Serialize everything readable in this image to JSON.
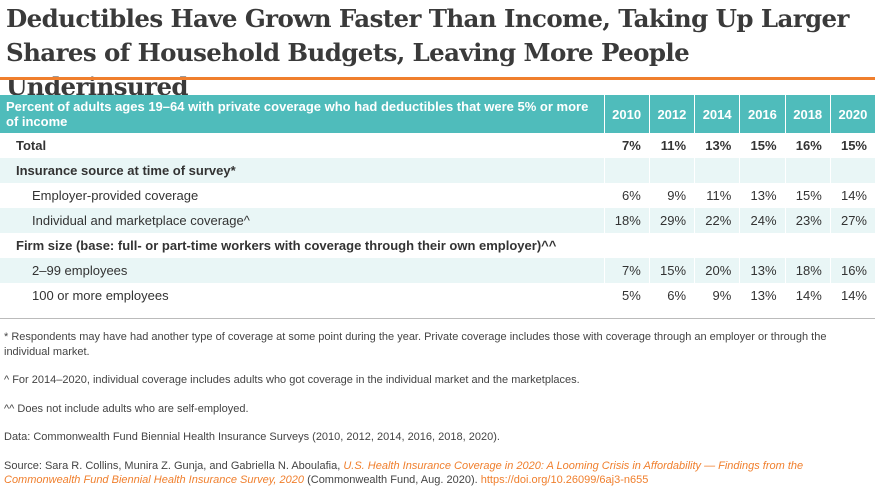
{
  "title_line1": "Deductibles Have Grown Faster Than Income, Taking Up Larger",
  "title_line2": "Shares of Household Budgets, Leaving More People Underinsured",
  "chart_data": {
    "type": "table",
    "header": "Percent of adults ages 19–64 with private coverage who had deductibles that were 5% or more of income",
    "years": [
      "2010",
      "2012",
      "2014",
      "2016",
      "2018",
      "2020"
    ],
    "rows": [
      {
        "label": "Total",
        "values": [
          "7%",
          "11%",
          "13%",
          "15%",
          "16%",
          "15%"
        ],
        "style": "bold",
        "indent": 1
      },
      {
        "label": "Insurance source at time of survey*",
        "values": [
          "",
          "",
          "",
          "",
          "",
          ""
        ],
        "style": "bold alt",
        "indent": 1
      },
      {
        "label": "Employer-provided coverage",
        "values": [
          "6%",
          "9%",
          "11%",
          "13%",
          "15%",
          "14%"
        ],
        "style": "",
        "indent": 2
      },
      {
        "label": "Individual and marketplace coverage^",
        "values": [
          "18%",
          "29%",
          "22%",
          "24%",
          "23%",
          "27%"
        ],
        "style": "alt",
        "indent": 2
      },
      {
        "label": "Firm size (base: full- or part-time workers with coverage through their own employer)^^",
        "values": [
          "",
          "",
          "",
          "",
          "",
          ""
        ],
        "style": "bold",
        "indent": 1
      },
      {
        "label": "2–99 employees",
        "values": [
          "7%",
          "15%",
          "20%",
          "13%",
          "18%",
          "16%"
        ],
        "style": "alt",
        "indent": 2
      },
      {
        "label": "100 or more employees",
        "values": [
          "5%",
          "6%",
          "9%",
          "13%",
          "14%",
          "14%"
        ],
        "style": "",
        "indent": 2
      }
    ]
  },
  "notes": {
    "n1": "* Respondents may have had another type of coverage at some point during the year. Private coverage includes those with coverage through an employer or through the individual market.",
    "n2": "^ For 2014–2020, individual coverage includes adults who got coverage in the individual market and the marketplaces.",
    "n3": "^^ Does not include adults who are self-employed.",
    "data": "Data: Commonwealth Fund Biennial Health Insurance Surveys (2010, 2012, 2014, 2016, 2018, 2020).",
    "source_prefix": "Source: Sara R. Collins, Munira Z. Gunja, and Gabriella N. Aboulafia, ",
    "source_title": "U.S. Health Insurance Coverage in 2020: A Looming Crisis in Affordability — Findings from the Commonwealth Fund Biennial Health Insurance Survey, 2020",
    "source_suffix": " (Commonwealth Fund, Aug. 2020). ",
    "source_link": "https://doi.org/10.26099/6aj3-n655"
  }
}
